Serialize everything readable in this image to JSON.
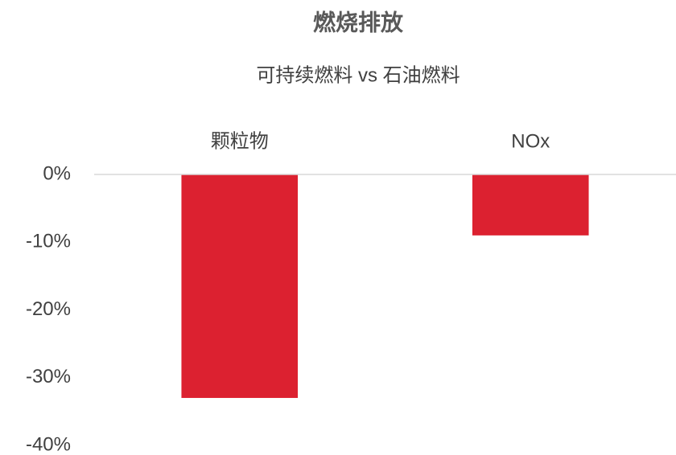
{
  "chart_data": {
    "type": "bar",
    "title": "燃烧排放",
    "subtitle": "可持续燃料 vs 石油燃料",
    "categories": [
      "颗粒物",
      "NOx"
    ],
    "values": [
      -33,
      -9
    ],
    "color": "#dc2130",
    "ylim": [
      -40,
      0
    ],
    "yticks": [
      {
        "value": 0,
        "label": "0%"
      },
      {
        "value": -10,
        "label": "-10%"
      },
      {
        "value": -20,
        "label": "-20%"
      },
      {
        "value": -30,
        "label": "-30%"
      },
      {
        "value": -40,
        "label": "-40%"
      }
    ],
    "grid": false
  }
}
